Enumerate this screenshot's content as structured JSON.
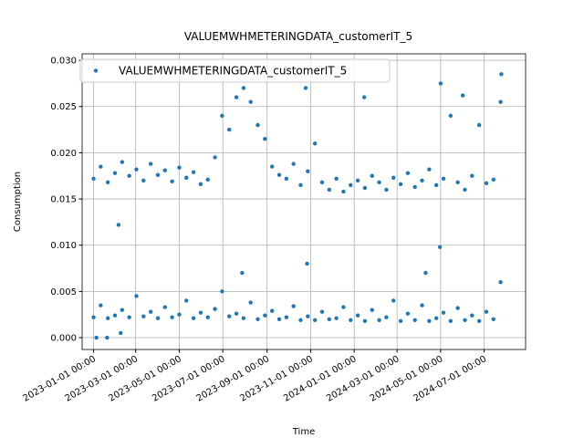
{
  "chart_data": {
    "type": "scatter",
    "title": "VALUEMWHMETERINGDATA_customerIT_5",
    "xlabel": "Time",
    "ylabel": "Consumption",
    "legend": "upper left",
    "grid": true,
    "xlim": [
      "2022-12-16 00:00",
      "2024-08-28 00:00"
    ],
    "xticks": [
      "2023-01-01 00:00",
      "2023-03-01 00:00",
      "2023-05-01 00:00",
      "2023-07-01 00:00",
      "2023-09-01 00:00",
      "2023-11-01 00:00",
      "2024-01-01 00:00",
      "2024-03-01 00:00",
      "2024-05-01 00:00",
      "2024-07-01 00:00"
    ],
    "ylim": [
      -0.00128,
      0.0307
    ],
    "yticks": [
      {
        "value": 0,
        "label": "0.000"
      },
      {
        "value": 0.005,
        "label": "0.005"
      },
      {
        "value": 0.01,
        "label": "0.010"
      },
      {
        "value": 0.015,
        "label": "0.015"
      },
      {
        "value": 0.02,
        "label": "0.020"
      },
      {
        "value": 0.025,
        "label": "0.025"
      },
      {
        "value": 0.03,
        "label": "0.030"
      }
    ],
    "series": [
      {
        "name": "VALUEMWHMETERINGDATA_customerIT_5",
        "color": "#1f77b4",
        "x": [
          "2023-01-01 00:00",
          "2023-01-11 00:00",
          "2023-01-21 00:00",
          "2023-01-31 00:00",
          "2023-02-10 00:00",
          "2023-02-20 00:00",
          "2023-03-02 00:00",
          "2023-03-12 00:00",
          "2023-03-22 00:00",
          "2023-04-01 00:00",
          "2023-04-11 00:00",
          "2023-04-21 00:00",
          "2023-05-01 00:00",
          "2023-05-11 00:00",
          "2023-05-21 00:00",
          "2023-05-31 00:00",
          "2023-06-10 00:00",
          "2023-06-20 00:00",
          "2023-06-30 00:00",
          "2023-07-10 00:00",
          "2023-07-20 00:00",
          "2023-07-30 00:00",
          "2023-08-09 00:00",
          "2023-08-19 00:00",
          "2023-08-29 00:00",
          "2023-09-08 00:00",
          "2023-09-18 00:00",
          "2023-09-28 00:00",
          "2023-10-08 00:00",
          "2023-10-18 00:00",
          "2023-10-28 00:00",
          "2023-11-07 00:00",
          "2023-11-17 00:00",
          "2023-11-27 00:00",
          "2023-12-07 00:00",
          "2023-12-17 00:00",
          "2023-12-27 00:00",
          "2024-01-06 00:00",
          "2024-01-16 00:00",
          "2024-01-26 00:00",
          "2024-02-05 00:00",
          "2024-02-15 00:00",
          "2024-02-25 00:00",
          "2024-03-06 00:00",
          "2024-03-16 00:00",
          "2024-03-26 00:00",
          "2024-04-05 00:00",
          "2024-04-15 00:00",
          "2024-04-25 00:00",
          "2024-05-05 00:00",
          "2024-05-15 00:00",
          "2024-05-25 00:00",
          "2024-06-04 00:00",
          "2024-06-14 00:00",
          "2024-06-24 00:00",
          "2024-07-04 00:00",
          "2024-07-14 00:00",
          "2024-07-24 00:00",
          "2023-01-01 00:00",
          "2023-01-11 00:00",
          "2023-01-21 00:00",
          "2023-01-31 00:00",
          "2023-02-10 00:00",
          "2023-02-20 00:00",
          "2023-03-02 00:00",
          "2023-03-12 00:00",
          "2023-03-22 00:00",
          "2023-04-01 00:00",
          "2023-04-11 00:00",
          "2023-04-21 00:00",
          "2023-05-01 00:00",
          "2023-05-11 00:00",
          "2023-05-21 00:00",
          "2023-05-31 00:00",
          "2023-06-10 00:00",
          "2023-06-20 00:00",
          "2023-06-30 00:00",
          "2023-07-10 00:00",
          "2023-07-20 00:00",
          "2023-07-30 00:00",
          "2023-08-09 00:00",
          "2023-08-19 00:00",
          "2023-08-29 00:00",
          "2023-09-08 00:00",
          "2023-09-18 00:00",
          "2023-09-28 00:00",
          "2023-10-08 00:00",
          "2023-10-18 00:00",
          "2023-10-28 00:00",
          "2023-11-07 00:00",
          "2023-11-17 00:00",
          "2023-11-27 00:00",
          "2023-12-07 00:00",
          "2023-12-17 00:00",
          "2023-12-27 00:00",
          "2024-01-06 00:00",
          "2024-01-16 00:00",
          "2024-01-26 00:00",
          "2024-02-05 00:00",
          "2024-02-15 00:00",
          "2024-02-25 00:00",
          "2024-03-06 00:00",
          "2024-03-16 00:00",
          "2024-03-26 00:00",
          "2024-04-05 00:00",
          "2024-04-15 00:00",
          "2024-04-25 00:00",
          "2024-05-05 00:00",
          "2024-05-15 00:00",
          "2024-05-25 00:00",
          "2024-06-04 00:00",
          "2024-06-14 00:00",
          "2024-06-24 00:00",
          "2024-07-04 00:00",
          "2024-07-14 00:00",
          "2024-07-24 00:00",
          "2023-01-05 00:00",
          "2023-01-20 00:00",
          "2023-02-08 00:00",
          "2023-07-25 00:00",
          "2023-07-28 00:00",
          "2023-10-25 00:00",
          "2023-10-27 00:00",
          "2024-01-15 00:00",
          "2024-04-10 00:00",
          "2024-05-01 00:00",
          "2024-04-30 00:00",
          "2024-07-25 00:00",
          "2023-02-05 00:00",
          "2024-06-01 00:00"
        ],
        "values": [
          0.0172,
          0.0185,
          0.0168,
          0.0178,
          0.019,
          0.0175,
          0.0182,
          0.017,
          0.0188,
          0.0176,
          0.0181,
          0.0169,
          0.0184,
          0.0173,
          0.0179,
          0.0166,
          0.0171,
          0.0195,
          0.024,
          0.0225,
          0.026,
          0.027,
          0.0255,
          0.023,
          0.0215,
          0.0185,
          0.0176,
          0.0172,
          0.0188,
          0.0165,
          0.018,
          0.021,
          0.0168,
          0.016,
          0.0172,
          0.0158,
          0.0165,
          0.017,
          0.0162,
          0.0175,
          0.0168,
          0.016,
          0.0173,
          0.0166,
          0.0178,
          0.0163,
          0.017,
          0.0182,
          0.0165,
          0.0172,
          0.024,
          0.0168,
          0.016,
          0.0175,
          0.023,
          0.0167,
          0.0171,
          0.0255,
          0.0022,
          0.0035,
          0.0021,
          0.0024,
          0.003,
          0.0022,
          0.0045,
          0.0023,
          0.0028,
          0.0021,
          0.0033,
          0.0022,
          0.0025,
          0.004,
          0.0021,
          0.0027,
          0.0022,
          0.0031,
          0.005,
          0.0023,
          0.0026,
          0.0021,
          0.0038,
          0.002,
          0.0024,
          0.0029,
          0.002,
          0.0022,
          0.0034,
          0.0019,
          0.0023,
          0.0019,
          0.0028,
          0.002,
          0.0021,
          0.0033,
          0.0019,
          0.0024,
          0.0018,
          0.003,
          0.0019,
          0.0022,
          0.004,
          0.0018,
          0.0026,
          0.0019,
          0.0035,
          0.0018,
          0.0021,
          0.0027,
          0.0018,
          0.0032,
          0.0019,
          0.0024,
          0.0018,
          0.0028,
          0.002,
          0.006,
          0,
          0,
          0.0005,
          0.029,
          0.007,
          0.027,
          0.008,
          0.026,
          0.007,
          0.0275,
          0.0098,
          0.0285,
          0.0122,
          0.0262
        ]
      }
    ]
  }
}
